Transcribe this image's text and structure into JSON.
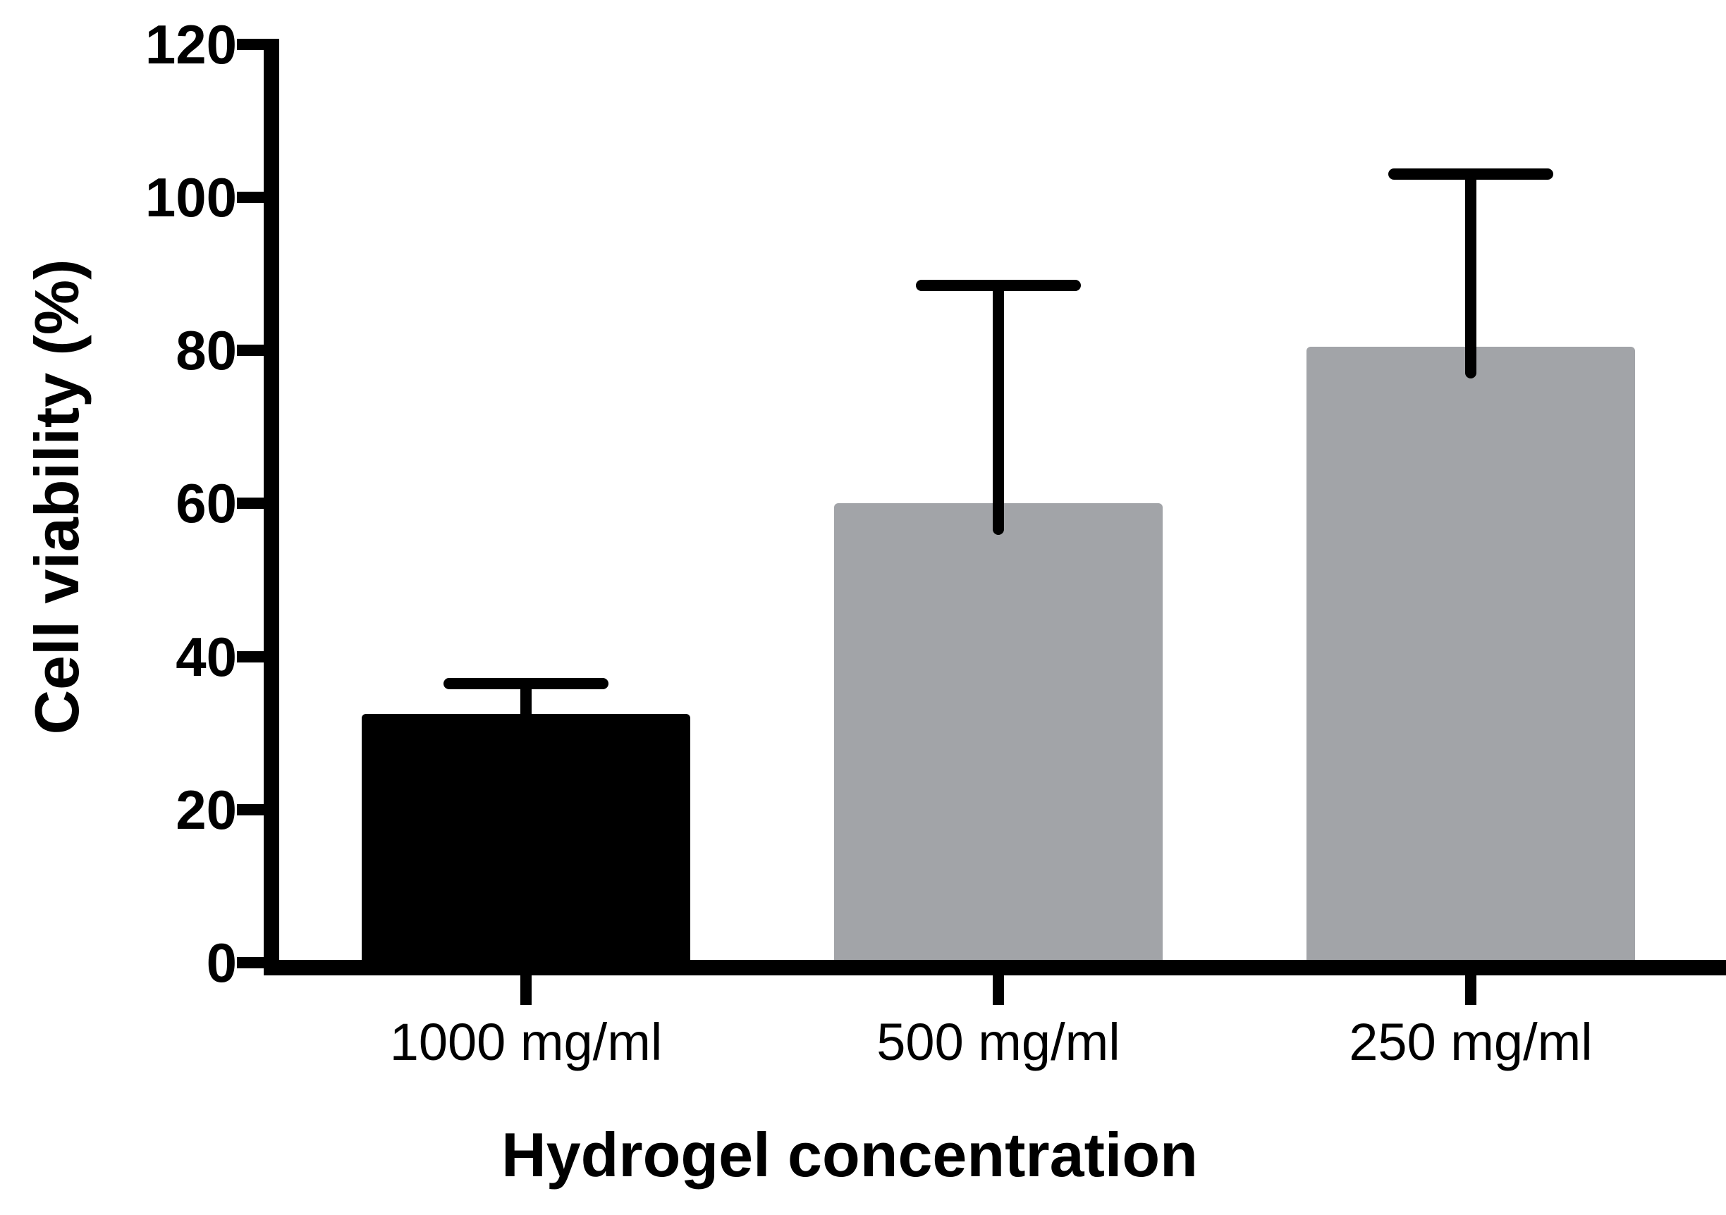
{
  "figure": {
    "background": "#ffffff",
    "axis_color": "#000000"
  },
  "chart_data": {
    "type": "bar",
    "title": "",
    "categories": [
      "1000 mg/ml",
      "500 mg/ml",
      "250 mg/ml"
    ],
    "values": [
      32.5,
      60,
      80.5
    ],
    "error_plus": [
      4,
      28.5,
      22.5
    ],
    "error_top_values": [
      36.5,
      88.5,
      103
    ],
    "bar_colors": [
      "#000000",
      "#a2a4a8",
      "#a2a4a8"
    ],
    "xlabel": "Hydrogel concentration",
    "ylabel": "Cell viability (%)",
    "ylim": [
      0,
      120
    ],
    "yticks": [
      0,
      20,
      40,
      60,
      80,
      100,
      120
    ],
    "grid": false,
    "legend_position": "none"
  }
}
